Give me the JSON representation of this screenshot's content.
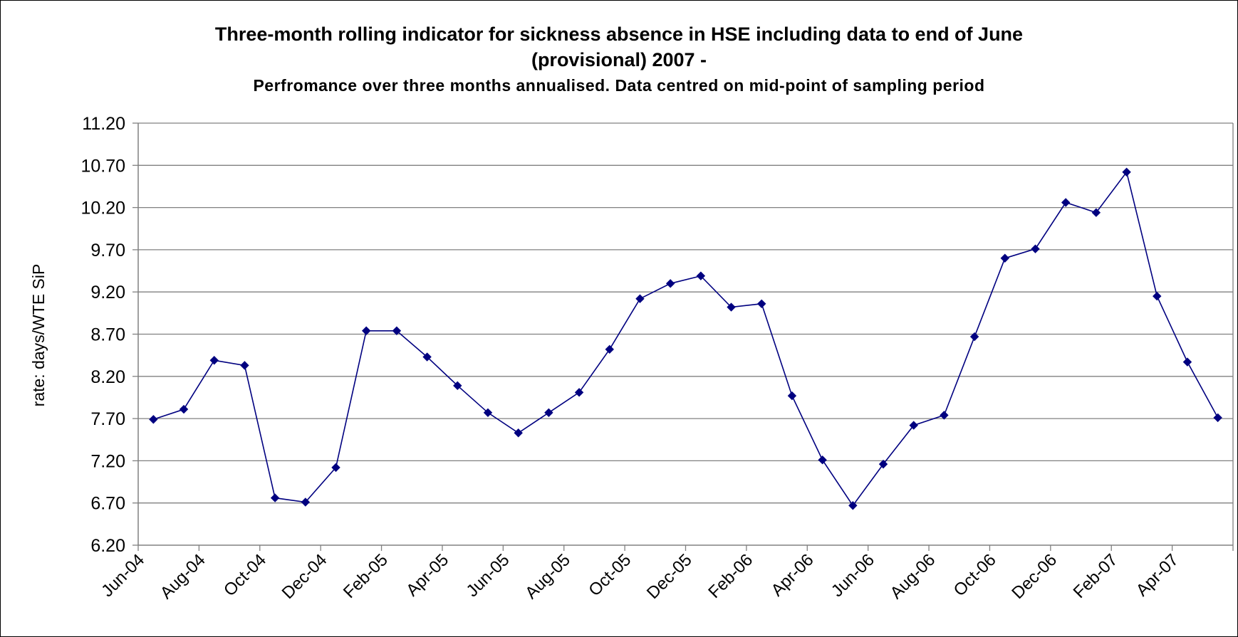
{
  "chart_data": {
    "type": "line",
    "title_line1": "Three-month rolling indicator for sickness absence in HSE including data to end of June",
    "title_line2": "(provisional) 2007 -",
    "subtitle": "Perfromance over three months annualised.  Data centred on mid-point of sampling period",
    "xlabel": "",
    "ylabel": "rate: days/WTE SiP",
    "ylim": [
      6.2,
      11.2
    ],
    "y_ticks": [
      "6.20",
      "6.70",
      "7.20",
      "7.70",
      "8.20",
      "8.70",
      "9.20",
      "9.70",
      "10.20",
      "10.70",
      "11.20"
    ],
    "x_tick_labels": [
      "Jun-04",
      "Aug-04",
      "Oct-04",
      "Dec-04",
      "Feb-05",
      "Apr-05",
      "Jun-05",
      "Aug-05",
      "Oct-05",
      "Dec-05",
      "Feb-06",
      "Apr-06",
      "Jun-06",
      "Aug-06",
      "Oct-06",
      "Dec-06",
      "Feb-07",
      "Apr-07"
    ],
    "grid": true,
    "legend": "none",
    "colors": {
      "series": "#000080",
      "grid": "#808080",
      "axis": "#808080"
    },
    "series": [
      {
        "values": [
          7.69,
          7.81,
          8.39,
          8.33,
          6.76,
          6.71,
          7.12,
          8.74,
          8.74,
          8.43,
          8.09,
          7.77,
          7.53,
          7.77,
          8.01,
          8.52,
          9.12,
          9.3,
          9.39,
          9.02,
          9.06,
          7.97,
          7.21,
          6.67,
          7.16,
          7.62,
          7.74,
          8.67,
          9.6,
          9.71,
          10.26,
          10.14,
          10.62,
          9.15,
          8.37,
          7.71
        ]
      }
    ]
  }
}
